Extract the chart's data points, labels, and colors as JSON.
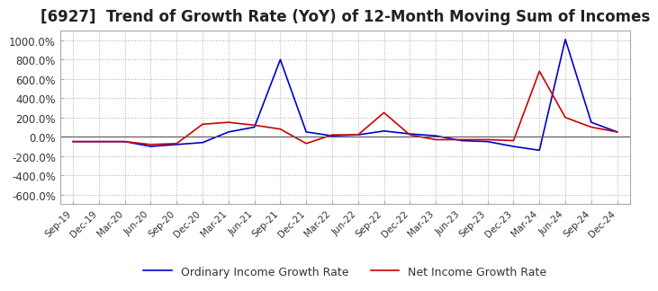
{
  "title": "[6927]  Trend of Growth Rate (YoY) of 12-Month Moving Sum of Incomes",
  "title_fontsize": 12,
  "ylim": [
    -700,
    1100
  ],
  "yticks": [
    -600,
    -400,
    -200,
    0,
    200,
    400,
    600,
    800,
    1000
  ],
  "yticklabels": [
    "-600.0%",
    "-400.0%",
    "-200.0%",
    "0.0%",
    "200.0%",
    "400.0%",
    "600.0%",
    "800.0%",
    "1000.0%"
  ],
  "background_color": "#ffffff",
  "plot_background": "#ffffff",
  "grid_color": "#aaaaaa",
  "ordinary_color": "#0000cc",
  "net_color": "#cc0000",
  "legend_labels": [
    "Ordinary Income Growth Rate",
    "Net Income Growth Rate"
  ],
  "x_dates": [
    "Sep-19",
    "Dec-19",
    "Mar-20",
    "Jun-20",
    "Sep-20",
    "Dec-20",
    "Mar-21",
    "Jun-21",
    "Sep-21",
    "Dec-21",
    "Mar-22",
    "Jun-22",
    "Sep-22",
    "Dec-22",
    "Mar-23",
    "Jun-23",
    "Sep-23",
    "Dec-23",
    "Mar-24",
    "Jun-24",
    "Sep-24",
    "Dec-24"
  ],
  "ordinary_values": [
    -50,
    -50,
    -50,
    -100,
    -80,
    -60,
    50,
    100,
    800,
    50,
    10,
    20,
    60,
    30,
    10,
    -40,
    -50,
    -100,
    -140,
    1010,
    150,
    50
  ],
  "net_values": [
    -50,
    -50,
    -50,
    -80,
    -70,
    130,
    150,
    120,
    80,
    -70,
    20,
    20,
    250,
    20,
    -30,
    -30,
    -30,
    -40,
    680,
    200,
    100,
    50
  ]
}
